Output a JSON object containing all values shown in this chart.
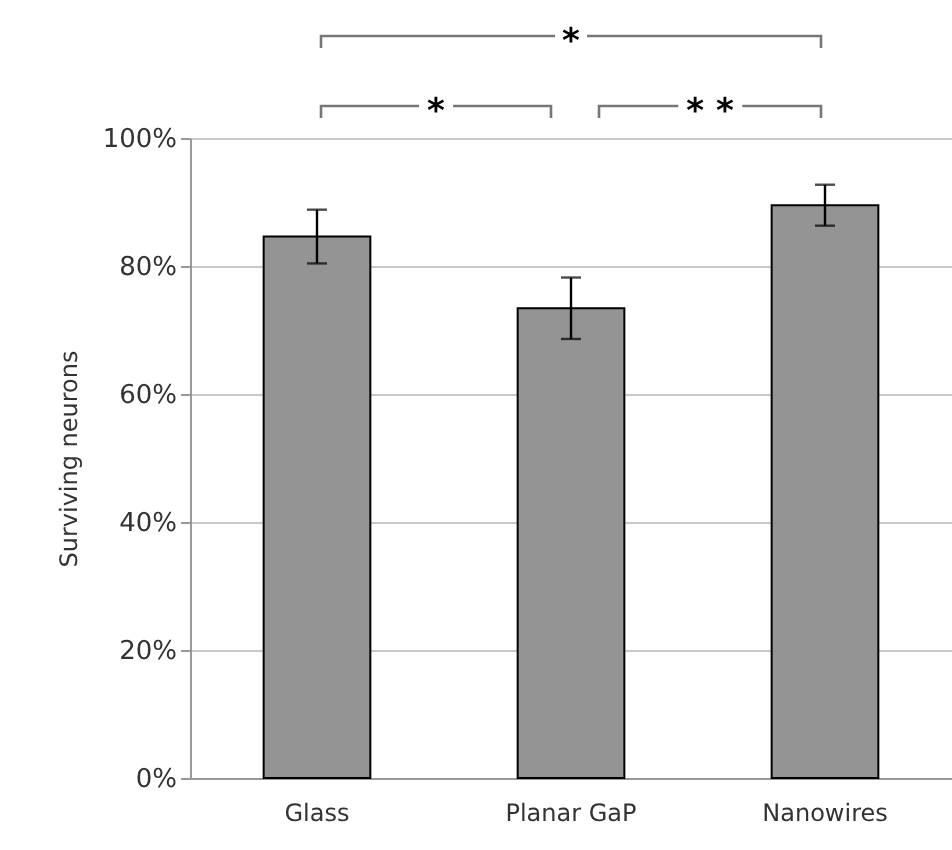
{
  "chart_data": {
    "type": "bar",
    "ylabel": "Surviving neurons",
    "categories": [
      "Glass",
      "Planar GaP",
      "Nanowires"
    ],
    "values": [
      84.6,
      73.4,
      89.5
    ],
    "errors": [
      4.2,
      4.8,
      3.2
    ],
    "color": "#949494",
    "ylim": [
      0,
      100
    ],
    "yticks": [
      {
        "value": 0,
        "label": "0%"
      },
      {
        "value": 20,
        "label": "20%"
      },
      {
        "value": 40,
        "label": "40%"
      },
      {
        "value": 60,
        "label": "60%"
      },
      {
        "value": 80,
        "label": "80%"
      },
      {
        "value": 100,
        "label": "100%"
      }
    ],
    "grid": "y",
    "annotations": [
      "*",
      "*",
      "* *"
    ]
  }
}
